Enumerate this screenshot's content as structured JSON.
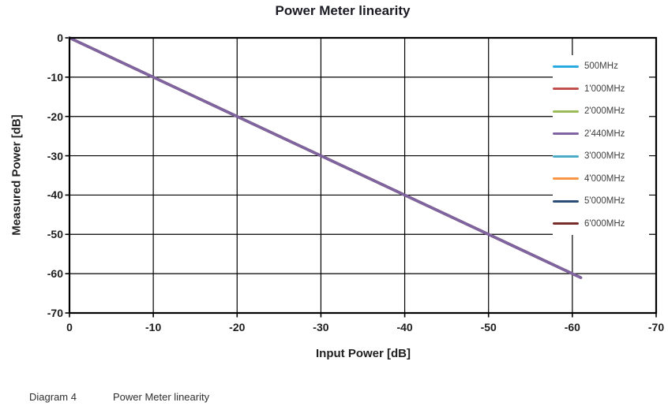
{
  "chart_data": {
    "type": "line",
    "title": "Power Meter linearity",
    "xlabel": "Input Power [dB]",
    "ylabel": "Measured Power [dB]",
    "xlim": [
      0,
      -70
    ],
    "ylim": [
      0,
      -70
    ],
    "x_ticks": [
      0,
      -10,
      -20,
      -30,
      -40,
      -50,
      -60,
      -70
    ],
    "y_ticks": [
      0,
      -10,
      -20,
      -30,
      -40,
      -50,
      -60,
      -70
    ],
    "grid": true,
    "legend_position": "inside-top-right",
    "top_series": "2'440MHz",
    "series": [
      {
        "name": "500MHz",
        "color": "#29ABE2",
        "x": [
          0,
          -61
        ],
        "y": [
          0,
          -61
        ]
      },
      {
        "name": "1'000MHz",
        "color": "#C0504D",
        "x": [
          0,
          -61
        ],
        "y": [
          0,
          -61
        ]
      },
      {
        "name": "2'000MHz",
        "color": "#9BBB59",
        "x": [
          0,
          -61
        ],
        "y": [
          0,
          -61
        ]
      },
      {
        "name": "2'440MHz",
        "color": "#8064A2",
        "x": [
          0,
          -61
        ],
        "y": [
          0,
          -61
        ]
      },
      {
        "name": "3'000MHz",
        "color": "#4BACC6",
        "x": [
          0,
          -61
        ],
        "y": [
          0,
          -61
        ]
      },
      {
        "name": "4'000MHz",
        "color": "#F79646",
        "x": [
          0,
          -61
        ],
        "y": [
          0,
          -61
        ]
      },
      {
        "name": "5'000MHz",
        "color": "#2C4D75",
        "x": [
          0,
          -61
        ],
        "y": [
          0,
          -61
        ]
      },
      {
        "name": "6'000MHz",
        "color": "#772C2A",
        "x": [
          0,
          -61
        ],
        "y": [
          0,
          -61
        ]
      }
    ]
  },
  "caption": {
    "label": "Diagram 4",
    "text": "Power Meter linearity"
  }
}
